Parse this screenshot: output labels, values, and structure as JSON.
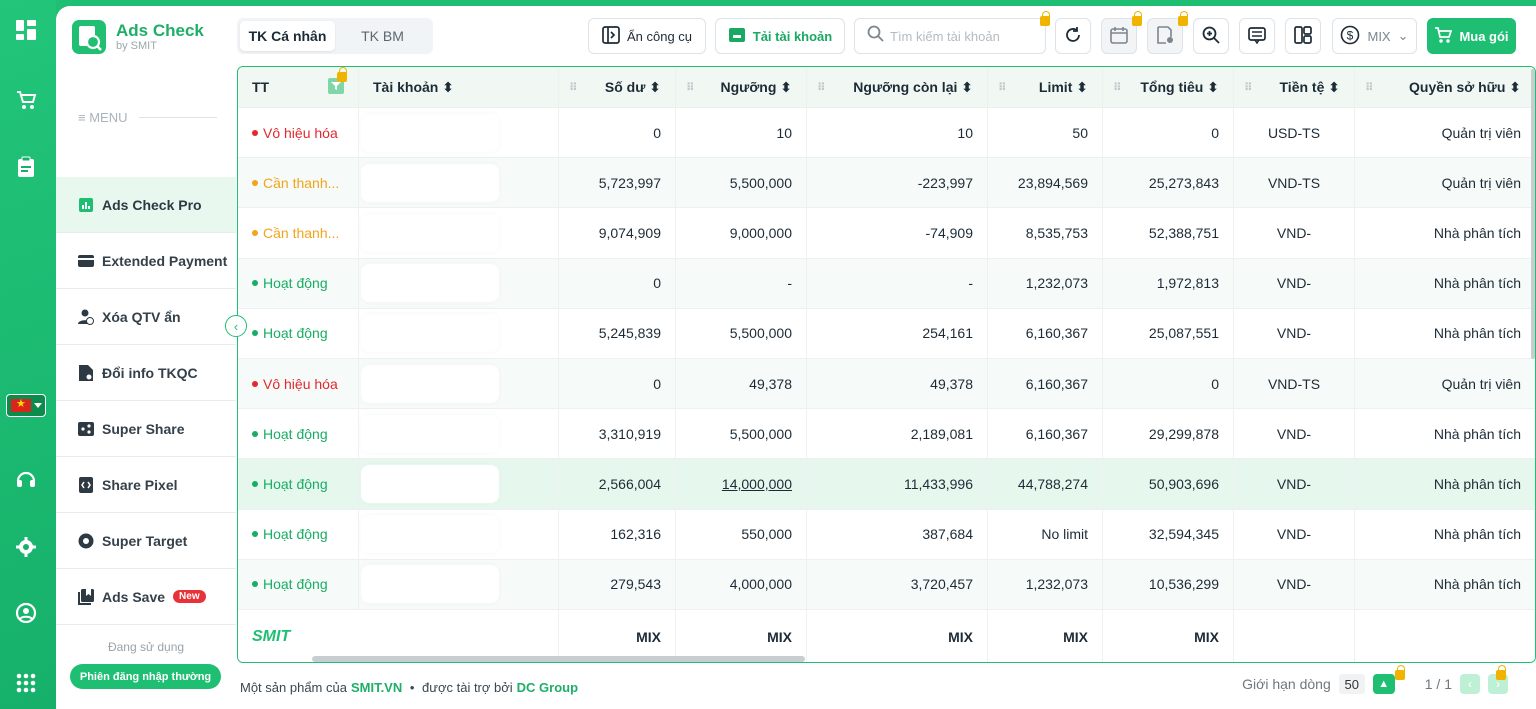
{
  "app": {
    "title": "Ads Check",
    "subtitle": "by SMIT",
    "menu_label": "≡ MENU"
  },
  "rail": {
    "icons": [
      "dashboard-icon",
      "cart-icon",
      "clipboard-icon",
      "flag-vn-icon",
      "headset-icon",
      "gear-icon",
      "user-circle-icon",
      "apps-grid-icon"
    ]
  },
  "sidebar": {
    "items": [
      {
        "label": "Ads Check Pro",
        "icon": "chart-icon",
        "active": true
      },
      {
        "label": "Extended Payment",
        "icon": "card-icon"
      },
      {
        "label": "Xóa QTV ẩn",
        "icon": "user-remove-icon"
      },
      {
        "label": "Đổi info TKQC",
        "icon": "file-edit-icon"
      },
      {
        "label": "Super Share",
        "icon": "share-icon"
      },
      {
        "label": "Share Pixel",
        "icon": "code-icon"
      },
      {
        "label": "Super Target",
        "icon": "target-icon"
      },
      {
        "label": "Ads Save",
        "icon": "bookmark-icon",
        "badge": "New"
      }
    ],
    "using_label": "Đang sử dụng",
    "session_label": "Phiên đăng nhập thường"
  },
  "toolbar": {
    "tabs": [
      "TK Cá nhân",
      "TK BM"
    ],
    "hide_tools": "Ẩn công cụ",
    "load_accounts": "Tải tài khoản",
    "search_placeholder": "Tìm kiếm tài khoản",
    "currency": "MIX",
    "buy": "Mua gói"
  },
  "table": {
    "columns": [
      "TT",
      "Tài khoản",
      "Số dư",
      "Ngưỡng",
      "Ngưỡng còn lại",
      "Limit",
      "Tổng tiêu",
      "Tiền tệ",
      "Quyền sở hữu"
    ],
    "rows": [
      {
        "status": "Vô hiệu hóa",
        "tone": "red",
        "balance": "0",
        "threshold": "10",
        "remaining": "10",
        "limit": "50",
        "spent": "0",
        "currency": "USD-TS",
        "role": "Quản trị viên"
      },
      {
        "status": "Cần thanh...",
        "tone": "org",
        "balance": "5,723,997",
        "threshold": "5,500,000",
        "remaining": "-223,997",
        "limit": "23,894,569",
        "spent": "25,273,843",
        "currency": "VND-TS",
        "role": "Quản trị viên"
      },
      {
        "status": "Cần thanh...",
        "tone": "org",
        "balance": "9,074,909",
        "threshold": "9,000,000",
        "remaining": "-74,909",
        "limit": "8,535,753",
        "spent": "52,388,751",
        "currency": "VND-",
        "role": "Nhà phân tích"
      },
      {
        "status": "Hoạt động",
        "tone": "grn",
        "balance": "0",
        "threshold": "-",
        "remaining": "-",
        "limit": "1,232,073",
        "spent": "1,972,813",
        "currency": "VND-",
        "role": "Nhà phân tích"
      },
      {
        "status": "Hoạt động",
        "tone": "grn",
        "balance": "5,245,839",
        "threshold": "5,500,000",
        "remaining": "254,161",
        "limit": "6,160,367",
        "spent": "25,087,551",
        "currency": "VND-",
        "role": "Nhà phân tích"
      },
      {
        "status": "Vô hiệu hóa",
        "tone": "red",
        "balance": "0",
        "threshold": "49,378",
        "remaining": "49,378",
        "limit": "6,160,367",
        "spent": "0",
        "currency": "VND-TS",
        "role": "Quản trị viên"
      },
      {
        "status": "Hoạt động",
        "tone": "grn",
        "balance": "3,310,919",
        "threshold": "5,500,000",
        "remaining": "2,189,081",
        "limit": "6,160,367",
        "spent": "29,299,878",
        "currency": "VND-",
        "role": "Nhà phân tích"
      },
      {
        "status": "Hoạt động",
        "tone": "grn",
        "balance": "2,566,004",
        "threshold": "14,000,000",
        "remaining": "11,433,996",
        "limit": "44,788,274",
        "spent": "50,903,696",
        "currency": "VND-",
        "role": "Nhà phân tích"
      },
      {
        "status": "Hoạt động",
        "tone": "grn",
        "balance": "162,316",
        "threshold": "550,000",
        "remaining": "387,684",
        "limit": "No limit",
        "spent": "32,594,345",
        "currency": "VND-",
        "role": "Nhà phân tích"
      },
      {
        "status": "Hoạt động",
        "tone": "grn",
        "balance": "279,543",
        "threshold": "4,000,000",
        "remaining": "3,720,457",
        "limit": "1,232,073",
        "spent": "10,536,299",
        "currency": "VND-",
        "role": "Nhà phân tích"
      }
    ],
    "footer": {
      "logo": "SMIT",
      "mix": "MIX"
    }
  },
  "bottom": {
    "product_of": "Một sản phẩm của",
    "smit": "SMIT.VN",
    "sponsored": "được tài trợ bởi",
    "dc": "DC Group",
    "row_limit_label": "Giới hạn dòng",
    "row_limit": "50",
    "pages": "1 / 1"
  },
  "colors": {
    "accent": "#1fbf73",
    "warning": "#f0a51b",
    "danger": "#e3282f",
    "lock": "#f0b400"
  }
}
